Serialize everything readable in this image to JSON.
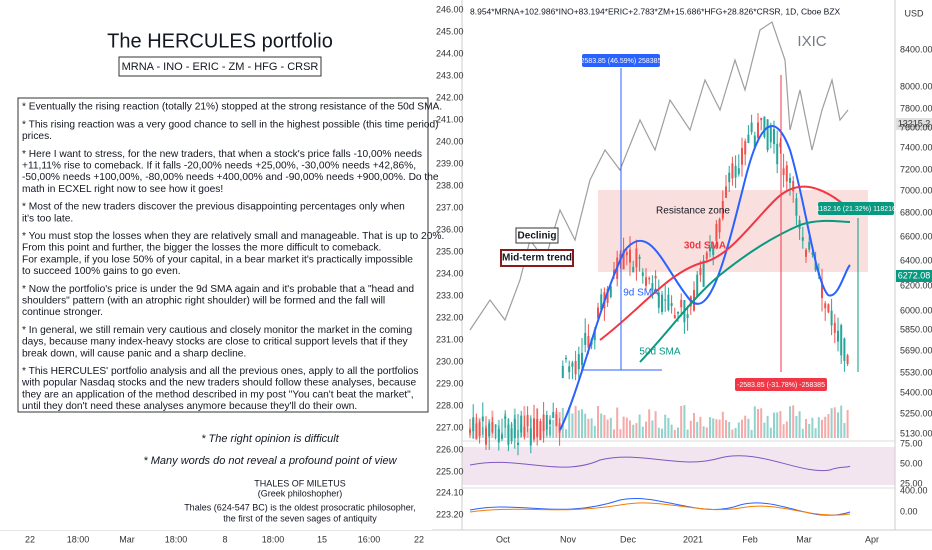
{
  "header": "8.954*MRNA+102.986*INO+83.194*ERIC+2.783*ZM+15.686*HFG+28.826*CRSR, 1D, Cboe BZX",
  "currency": "USD",
  "panel": {
    "title": "The HERCULES portfolio",
    "tickers": "MRNA - INO - ERIC - ZM - HFG - CRSR",
    "bullets": [
      [
        "* Eventually the rising reaction (totally 21%) stopped at the strong resistance of the 50d SMA."
      ],
      [
        "* This rising reaction was a very good chance to sell in the highest possible (this time period)",
        "prices."
      ],
      [
        "* Here I want to stress, for the new traders, that when a stock's price falls -10,00% needs",
        "+11,11% rise to comeback. If it falls -20,00% needs +25,00%, -30,00% needs +42,86%,",
        "-50,00% needs +100,00%, -80,00% needs +400,00% and -90,00% needs +900,00%. Do the",
        "math in ECXEL right now to see how it goes!"
      ],
      [
        "* Most of the new traders discover the previous disappointing percentages only when",
        "it's too late."
      ],
      [
        "* You must stop the losses when they are relatively small and manageable. That is up to 20%.",
        "From this point and further, the bigger the losses the more difficult to comeback.",
        "For example, if you lose 50% of your capital, in a bear market it's practically impossible",
        "to succeed 100% gains to go even."
      ],
      [
        "* Now the portfolio's price is under the 9d SMA again and it's probable that a \"head and",
        "shoulders\" pattern (with an atrophic right shoulder) will be formed and the fall will",
        "continue stronger."
      ],
      [
        "* In general, we still remain very cautious and closely monitor the market in the coming",
        "days, because many index-heavy stocks are close to critical support levels that if they",
        "break down, will cause panic and a sharp decline."
      ],
      [
        "* This HERCULES' portfolio analysis and all the previous ones, apply to all the portfolios",
        "with popular Nasdaq stocks and the new traders should follow these analyses, because",
        "they are an application of the method described in my post \"You can't beat the market\",",
        "until they don't need these analyses anymore because they'll do their own."
      ]
    ],
    "quotes": [
      "* The right opinion is difficult",
      "* Many words do not reveal a profound point of view"
    ],
    "author": {
      "name": "THALES OF MILETUS",
      "role": "(Greek philoshopher)",
      "bio": [
        "Thales (624-547 BC) is the oldest prosocratic philosopher,",
        "the first of the seven sages of antiquity"
      ]
    }
  },
  "left_axis": [
    "246.00",
    "245.00",
    "244.00",
    "243.00",
    "242.00",
    "241.00",
    "240.00",
    "239.00",
    "238.00",
    "237.00",
    "236.00",
    "235.00",
    "234.00",
    "233.00",
    "232.00",
    "231.00",
    "230.00",
    "229.00",
    "228.00",
    "227.00",
    "226.00",
    "225.00",
    "224.10",
    "223.20"
  ],
  "right_axis": [
    "8400.00",
    "8000.00",
    "7800.00",
    "7600.00",
    "7400.00",
    "7200.00",
    "7000.00",
    "6800.00",
    "6600.00",
    "6400.00",
    "6200.00",
    "6000.00",
    "5850.00",
    "5690.00",
    "5530.00",
    "5400.00",
    "5250.00",
    "5130.00"
  ],
  "rsi_axis": [
    "75.00",
    "50.00",
    "25.00"
  ],
  "macd_axis": [
    "400.00",
    "0.00"
  ],
  "badges": {
    "ixic": "13215.2",
    "portfolio": "6272.08"
  },
  "annotations": {
    "ixic": "IXIC",
    "resistance": "Resistance zone",
    "sma30": "30d SMA",
    "sma9": "9d SMA",
    "sma50": "50d SMA",
    "declining": "Declinig",
    "trend": "Mid-term trend",
    "rise1": "2583.85 (46.59%) 258385",
    "rise2": "1182.16 (21.32%) 118216",
    "fall": "-2583.85 (-31.78%) -258385"
  },
  "bottom_left": [
    "22",
    "18:00",
    "Mar",
    "18:00",
    "8",
    "18:00",
    "15",
    "16:00",
    "22"
  ],
  "bottom_chart": [
    "Oct",
    "Nov",
    "Dec",
    "2021",
    "Feb",
    "Mar",
    "Apr"
  ]
}
